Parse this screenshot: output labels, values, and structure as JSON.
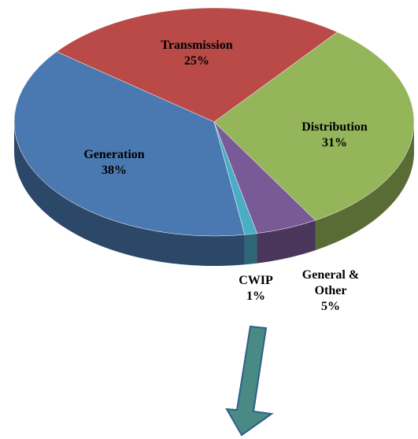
{
  "chart_data": {
    "type": "pie",
    "categories": [
      "Transmission",
      "Distribution",
      "General & Other",
      "CWIP",
      "Generation"
    ],
    "values": [
      25,
      31,
      5,
      1,
      38
    ],
    "value_labels": [
      "25%",
      "31%",
      "5%",
      "1%",
      "38%"
    ],
    "colors": [
      "#b94a48",
      "#94b55a",
      "#7a5a96",
      "#4bacc6",
      "#4a78b0"
    ]
  }
}
